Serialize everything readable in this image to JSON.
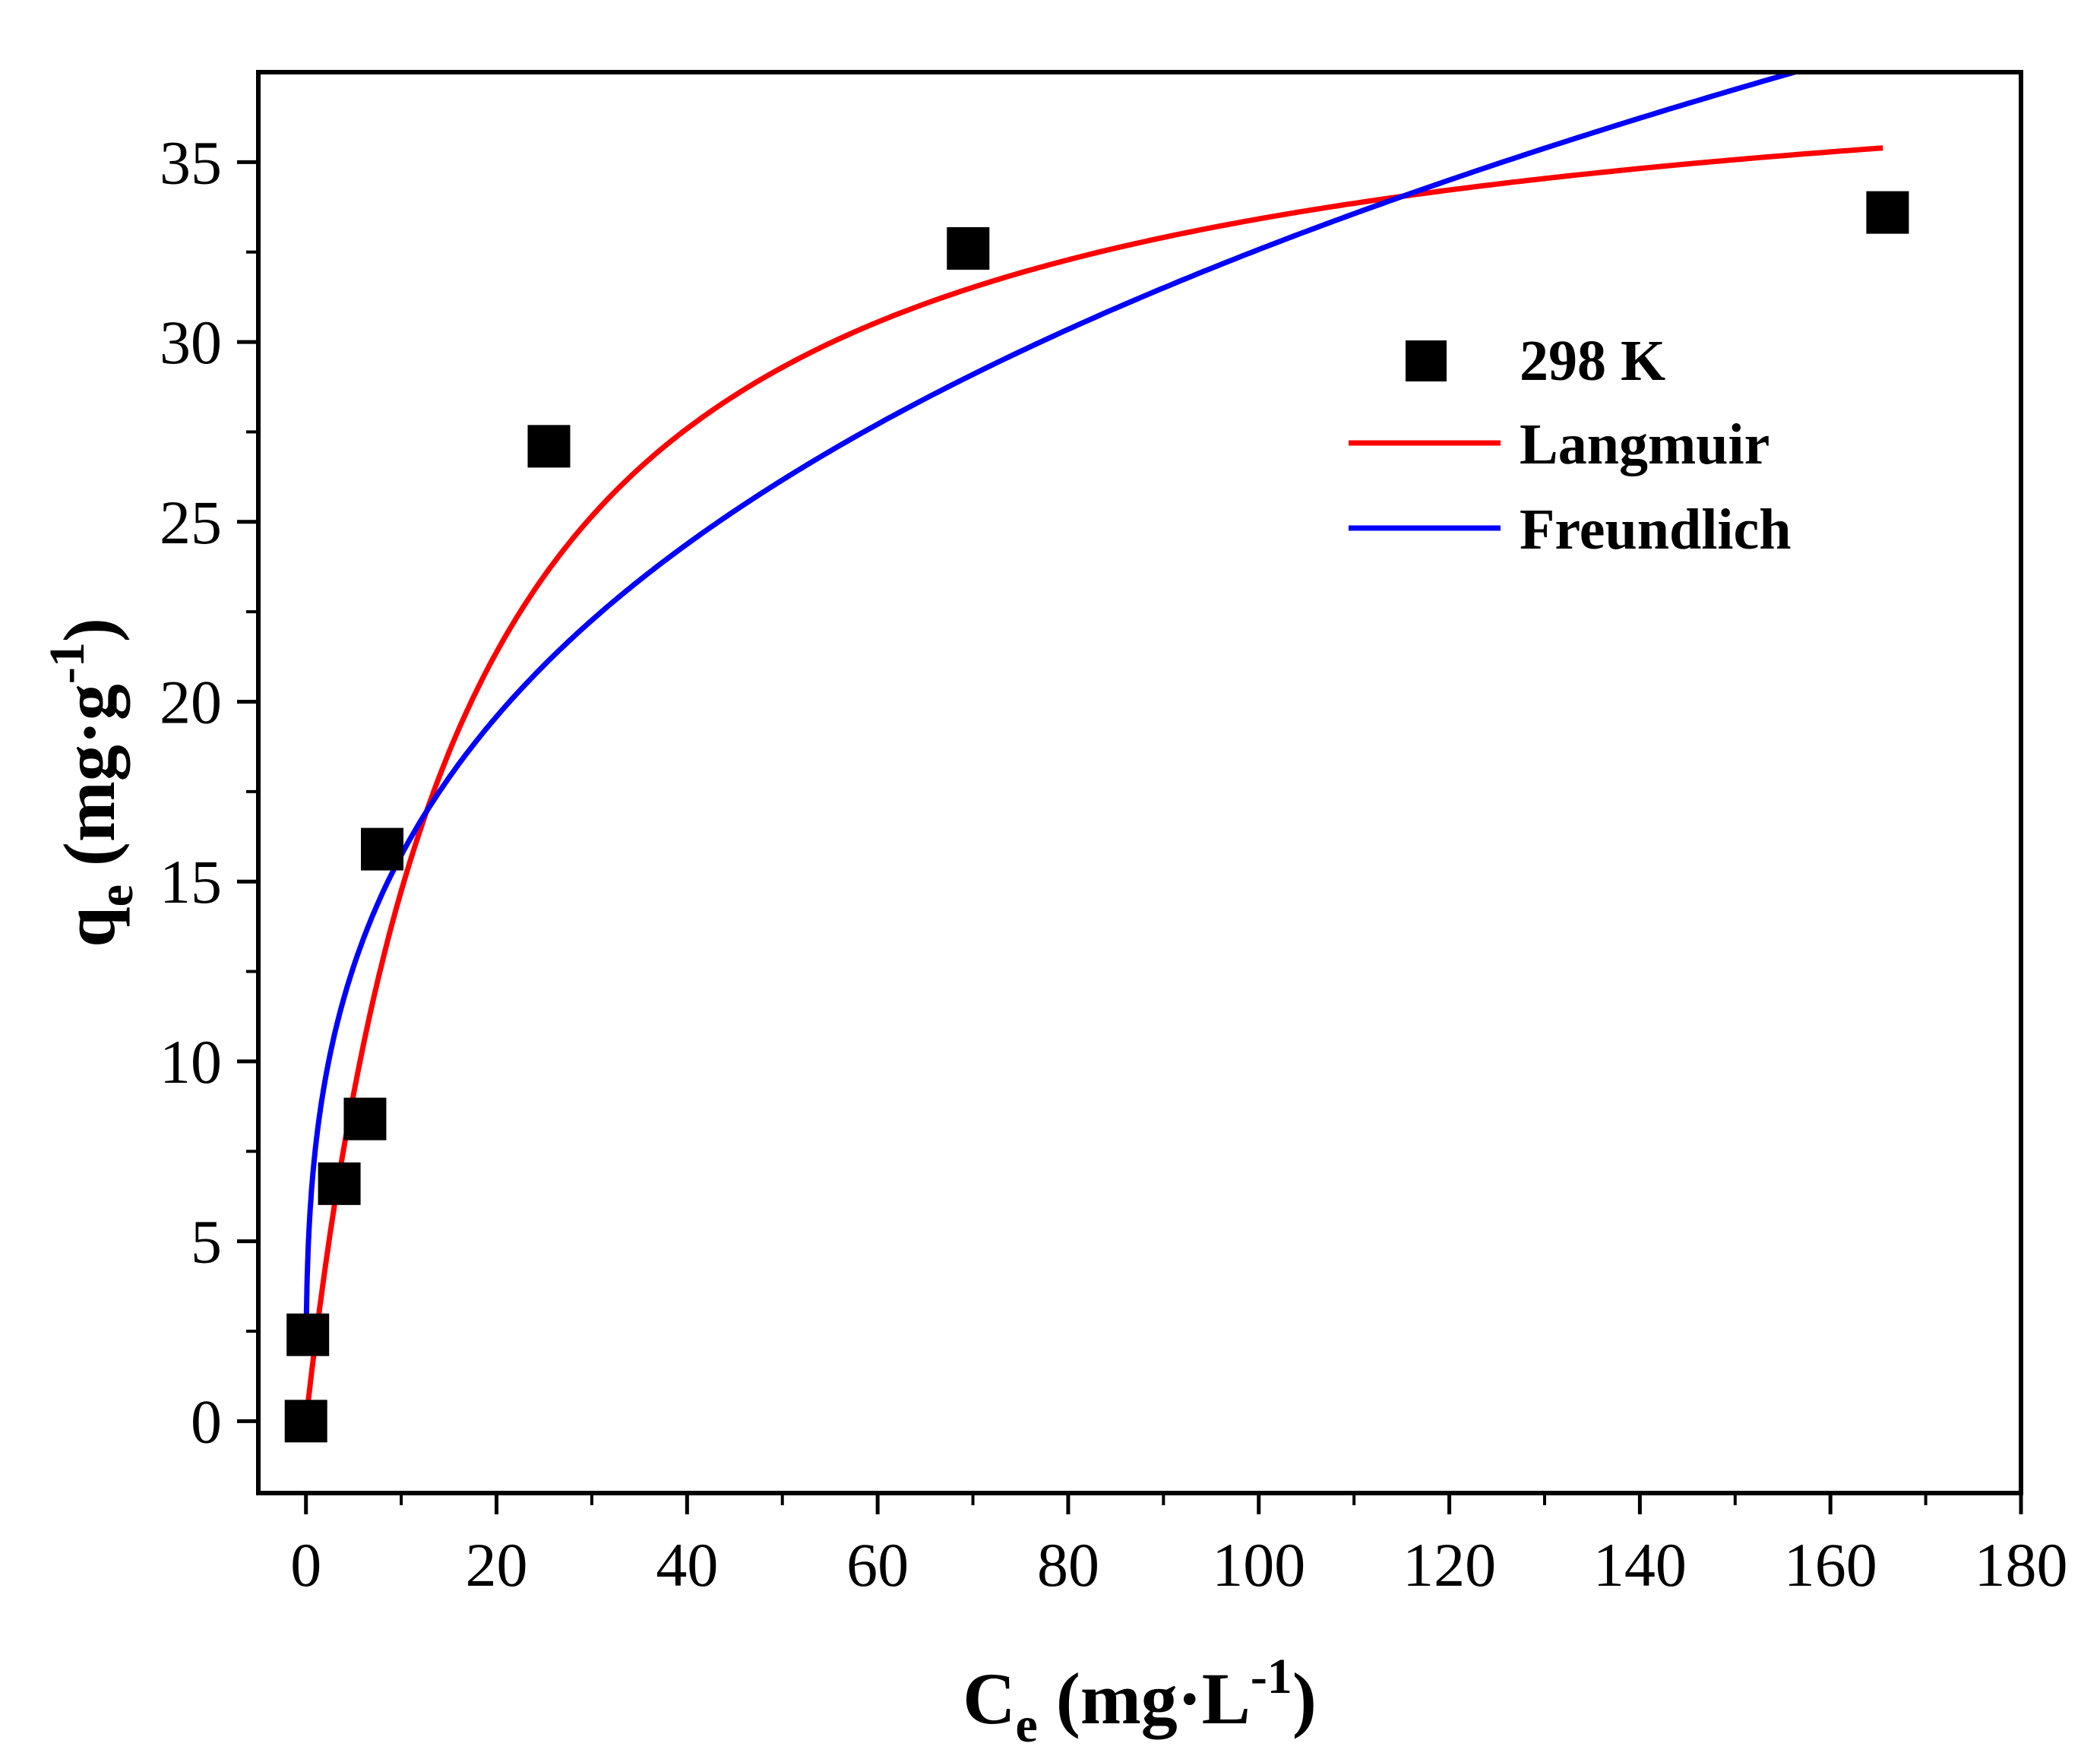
{
  "chart_data": {
    "type": "scatter",
    "title": "",
    "xlabel": {
      "main": "C",
      "sub": "e",
      "unit_open": " (mg·L",
      "sup": "-1",
      "unit_close": ")"
    },
    "ylabel": {
      "main": "q",
      "sub": "e",
      "unit_open": " (mg·g",
      "sup": "-1",
      "unit_close": ")"
    },
    "xlim": [
      -5,
      180
    ],
    "ylim": [
      -2,
      37.5
    ],
    "xticks": [
      0,
      20,
      40,
      60,
      80,
      100,
      120,
      140,
      160,
      180
    ],
    "xtick_labels": [
      "0",
      "20",
      "40",
      "60",
      "80",
      "100",
      "120",
      "140",
      "160",
      "180"
    ],
    "yticks": [
      0,
      5,
      10,
      15,
      20,
      25,
      30,
      35
    ],
    "ytick_labels": [
      "0",
      "5",
      "10",
      "15",
      "20",
      "25",
      "30",
      "35"
    ],
    "legend": {
      "position": "right",
      "entries": [
        {
          "label": "298 K",
          "kind": "marker",
          "color": "#000000"
        },
        {
          "label": "Langmuir",
          "kind": "line",
          "color": "#ff0000"
        },
        {
          "label": "Freundlich",
          "kind": "line",
          "color": "#0000ff"
        }
      ]
    },
    "series": [
      {
        "name": "298 K",
        "kind": "scatter",
        "marker": "square",
        "color": "#000000",
        "x": [
          0,
          0.2,
          3.5,
          6.2,
          8.0,
          25.5,
          69.5,
          166.0
        ],
        "y": [
          0,
          2.4,
          6.6,
          8.4,
          15.9,
          27.1,
          32.6,
          33.6
        ]
      },
      {
        "name": "Langmuir",
        "kind": "line",
        "color": "#ff0000",
        "model": "langmuir",
        "params": {
          "qm": 38.9,
          "KL": 0.061
        },
        "x_range": [
          0.2,
          165.5
        ]
      },
      {
        "name": "Freundlich",
        "kind": "line",
        "color": "#0000ff",
        "model": "freundlich",
        "params": {
          "KF": 7.6,
          "inv_n": 0.316
        },
        "x_range": [
          0.02,
          161.5
        ]
      }
    ]
  }
}
